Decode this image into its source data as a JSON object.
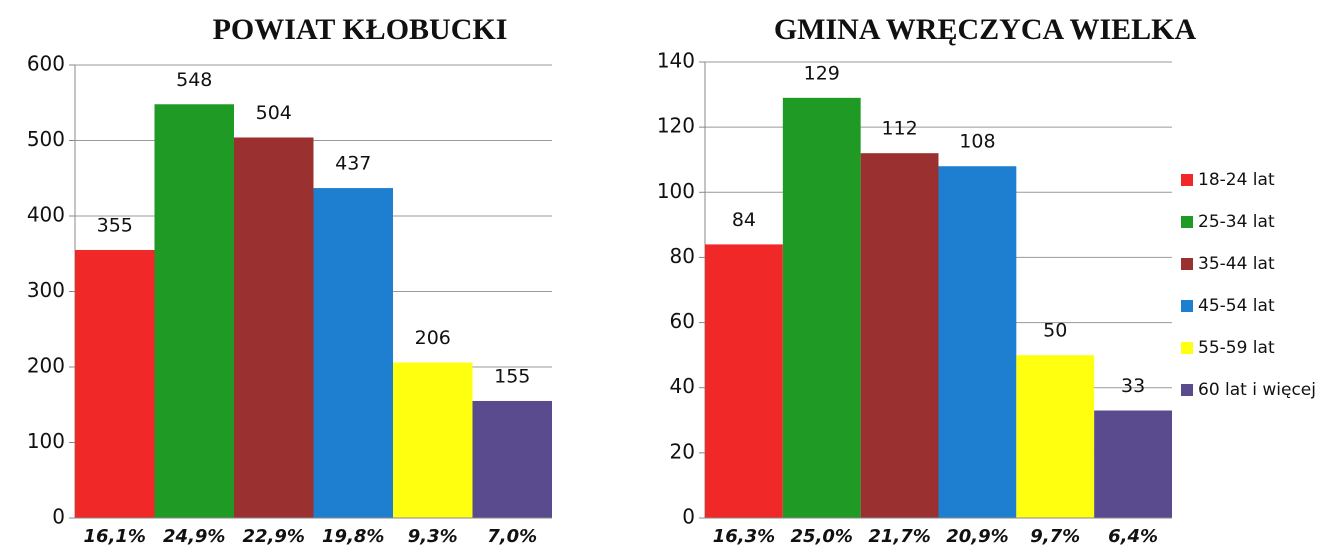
{
  "chart_data": [
    {
      "type": "bar",
      "title": "POWIAT KŁOBUCKI",
      "categories": [
        "16,1%",
        "24,9%",
        "22,9%",
        "19,8%",
        "9,3%",
        "7,0%"
      ],
      "values": [
        355,
        548,
        504,
        437,
        206,
        155
      ],
      "colors": [
        "#f02828",
        "#1f9a24",
        "#9a3030",
        "#1e7fd0",
        "#ffff10",
        "#5a4a8e"
      ],
      "ylim": [
        0,
        600
      ],
      "yticks": [
        0,
        100,
        200,
        300,
        400,
        500,
        600
      ],
      "grid": true
    },
    {
      "type": "bar",
      "title": "GMINA WRĘCZYCA WIELKA",
      "categories": [
        "16,3%",
        "25,0%",
        "21,7%",
        "20,9%",
        "9,7%",
        "6,4%"
      ],
      "values": [
        84,
        129,
        112,
        108,
        50,
        33
      ],
      "colors": [
        "#f02828",
        "#1f9a24",
        "#9a3030",
        "#1e7fd0",
        "#ffff10",
        "#5a4a8e"
      ],
      "ylim": [
        0,
        140
      ],
      "yticks": [
        0,
        20,
        40,
        60,
        80,
        100,
        120,
        140
      ],
      "grid": true,
      "legend": [
        "18-24 lat",
        "25-34 lat",
        "35-44 lat",
        "45-54 lat",
        "55-59 lat",
        "60 lat i więcej"
      ]
    }
  ]
}
